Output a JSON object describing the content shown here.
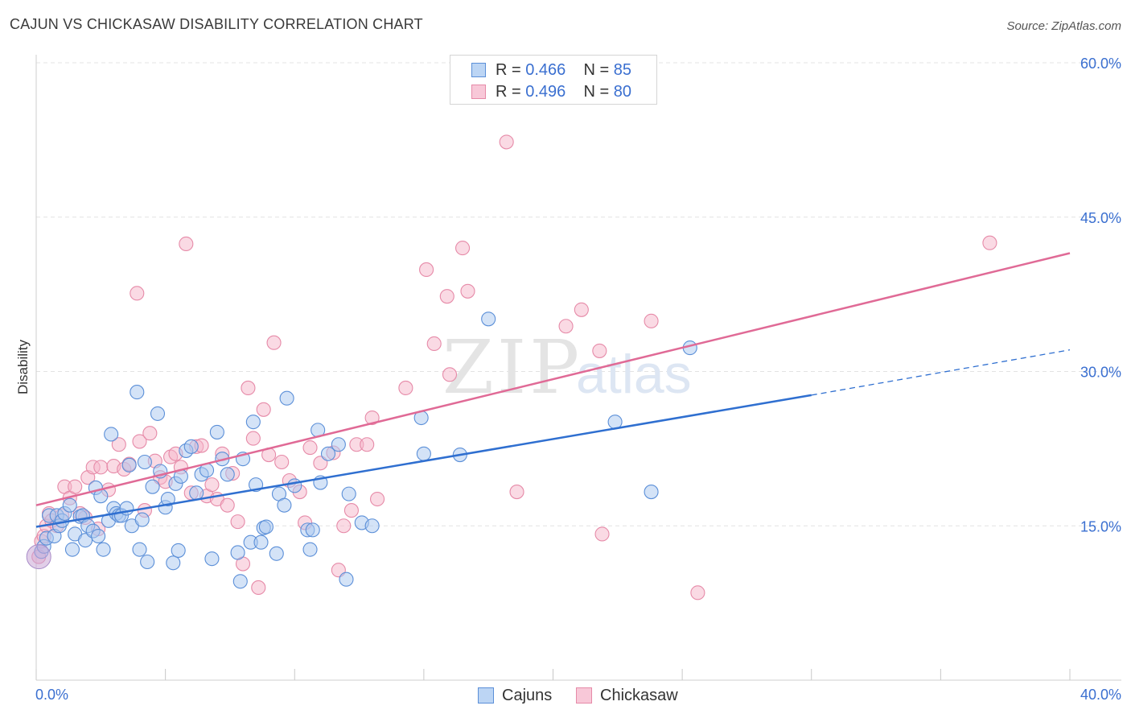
{
  "title": "CAJUN VS CHICKASAW DISABILITY CORRELATION CHART",
  "source": "Source: ZipAtlas.com",
  "watermark": {
    "zip": "ZIP",
    "atlas": "atlas"
  },
  "legend": {
    "rows": [
      {
        "r_label": "R = ",
        "r_value": "0.466",
        "n_label": "N = ",
        "n_value": "85"
      },
      {
        "r_label": "R = ",
        "r_value": "0.496",
        "n_label": "N = ",
        "n_value": "80"
      }
    ]
  },
  "colors": {
    "cajun_fill": "#a9c8f0",
    "cajun_stroke": "#5b8fd8",
    "cajun_line": "#2f6fd0",
    "chick_fill": "#f6b6ca",
    "chick_stroke": "#e68aa8",
    "chick_line": "#e06a96",
    "tick_label": "#3a6fd0"
  },
  "chart_data": {
    "type": "scatter",
    "title": "CAJUN VS CHICKASAW DISABILITY CORRELATION CHART",
    "xlabel": "",
    "ylabel": "Disability",
    "xlim": [
      0,
      40
    ],
    "ylim": [
      0,
      60
    ],
    "x_tick_labels": [
      "0.0%",
      "40.0%"
    ],
    "y_tick_labels": [
      "15.0%",
      "30.0%",
      "45.0%",
      "60.0%"
    ],
    "y_ticks": [
      15,
      30,
      45,
      60
    ],
    "grid": true,
    "legend_position": "top-center",
    "series": [
      {
        "name": "Cajuns",
        "r": 0.466,
        "n": 85,
        "trend": {
          "x0": 0,
          "y0": 14.9,
          "x1": 30,
          "y1": 27.7,
          "dash_to_x": 40,
          "dash_to_y": 32.1
        },
        "points": [
          [
            0.2,
            12.5
          ],
          [
            0.3,
            13.0
          ],
          [
            0.4,
            13.8
          ],
          [
            0.5,
            16.0
          ],
          [
            0.7,
            14.0
          ],
          [
            0.8,
            16.0
          ],
          [
            0.9,
            15.0
          ],
          [
            1.0,
            15.5
          ],
          [
            1.1,
            16.2
          ],
          [
            1.3,
            17.0
          ],
          [
            1.4,
            12.7
          ],
          [
            1.5,
            14.2
          ],
          [
            1.7,
            15.9
          ],
          [
            1.8,
            16.0
          ],
          [
            1.9,
            13.6
          ],
          [
            2.0,
            15.0
          ],
          [
            2.2,
            14.5
          ],
          [
            2.3,
            18.7
          ],
          [
            2.4,
            14.0
          ],
          [
            2.5,
            17.9
          ],
          [
            2.6,
            12.7
          ],
          [
            2.8,
            15.5
          ],
          [
            2.9,
            23.9
          ],
          [
            3.0,
            16.7
          ],
          [
            3.1,
            16.2
          ],
          [
            3.2,
            16.0
          ],
          [
            3.3,
            16.0
          ],
          [
            3.5,
            16.7
          ],
          [
            3.6,
            20.9
          ],
          [
            3.7,
            15.0
          ],
          [
            3.9,
            28.0
          ],
          [
            4.0,
            12.7
          ],
          [
            4.1,
            15.6
          ],
          [
            4.2,
            21.2
          ],
          [
            4.3,
            11.5
          ],
          [
            4.5,
            18.8
          ],
          [
            4.7,
            25.9
          ],
          [
            4.8,
            20.3
          ],
          [
            5.0,
            16.8
          ],
          [
            5.1,
            17.6
          ],
          [
            5.3,
            11.4
          ],
          [
            5.4,
            19.1
          ],
          [
            5.5,
            12.6
          ],
          [
            5.6,
            19.8
          ],
          [
            5.8,
            22.3
          ],
          [
            6.0,
            22.7
          ],
          [
            6.2,
            18.2
          ],
          [
            6.4,
            20.0
          ],
          [
            6.6,
            20.4
          ],
          [
            6.8,
            11.8
          ],
          [
            7.0,
            24.1
          ],
          [
            7.2,
            21.5
          ],
          [
            7.4,
            20.0
          ],
          [
            7.8,
            12.4
          ],
          [
            7.9,
            9.6
          ],
          [
            8.0,
            21.5
          ],
          [
            8.3,
            13.4
          ],
          [
            8.4,
            25.1
          ],
          [
            8.5,
            19.0
          ],
          [
            8.7,
            13.4
          ],
          [
            8.8,
            14.8
          ],
          [
            8.9,
            14.9
          ],
          [
            9.3,
            12.3
          ],
          [
            9.4,
            18.1
          ],
          [
            9.6,
            17.0
          ],
          [
            9.7,
            27.4
          ],
          [
            10.0,
            18.9
          ],
          [
            10.5,
            14.6
          ],
          [
            10.6,
            12.7
          ],
          [
            10.7,
            14.6
          ],
          [
            10.9,
            24.3
          ],
          [
            11.0,
            19.2
          ],
          [
            11.3,
            22.0
          ],
          [
            11.7,
            22.9
          ],
          [
            12.0,
            9.8
          ],
          [
            12.1,
            18.1
          ],
          [
            12.6,
            15.3
          ],
          [
            13.0,
            15.0
          ],
          [
            14.9,
            25.5
          ],
          [
            15.0,
            22.0
          ],
          [
            16.4,
            21.9
          ],
          [
            17.5,
            35.1
          ],
          [
            22.4,
            25.1
          ],
          [
            23.8,
            18.3
          ],
          [
            25.3,
            32.3
          ]
        ]
      },
      {
        "name": "Chickasaw",
        "r": 0.496,
        "n": 80,
        "trend": {
          "x0": 0,
          "y0": 17.0,
          "x1": 40,
          "y1": 41.5
        },
        "points": [
          [
            0.1,
            12.0
          ],
          [
            0.2,
            13.5
          ],
          [
            0.3,
            14.0
          ],
          [
            0.4,
            15.0
          ],
          [
            0.5,
            16.2
          ],
          [
            0.6,
            15.5
          ],
          [
            0.8,
            15.0
          ],
          [
            1.0,
            16.0
          ],
          [
            1.1,
            18.8
          ],
          [
            1.3,
            17.7
          ],
          [
            1.5,
            18.8
          ],
          [
            1.7,
            16.2
          ],
          [
            1.9,
            15.8
          ],
          [
            2.0,
            19.7
          ],
          [
            2.2,
            20.7
          ],
          [
            2.4,
            14.7
          ],
          [
            2.5,
            20.7
          ],
          [
            2.8,
            18.5
          ],
          [
            3.0,
            20.8
          ],
          [
            3.2,
            22.9
          ],
          [
            3.4,
            20.5
          ],
          [
            3.6,
            21.0
          ],
          [
            3.9,
            37.6
          ],
          [
            4.0,
            23.2
          ],
          [
            4.2,
            16.5
          ],
          [
            4.4,
            24.0
          ],
          [
            4.6,
            21.3
          ],
          [
            4.8,
            19.7
          ],
          [
            5.0,
            19.3
          ],
          [
            5.2,
            21.7
          ],
          [
            5.4,
            22.0
          ],
          [
            5.6,
            20.7
          ],
          [
            5.8,
            42.4
          ],
          [
            6.0,
            18.2
          ],
          [
            6.2,
            22.7
          ],
          [
            6.4,
            22.8
          ],
          [
            6.6,
            17.9
          ],
          [
            6.8,
            19.0
          ],
          [
            7.0,
            17.6
          ],
          [
            7.2,
            22.0
          ],
          [
            7.4,
            17.0
          ],
          [
            7.6,
            20.1
          ],
          [
            7.8,
            15.4
          ],
          [
            8.0,
            11.3
          ],
          [
            8.2,
            28.4
          ],
          [
            8.4,
            23.5
          ],
          [
            8.6,
            9.0
          ],
          [
            8.8,
            26.3
          ],
          [
            9.0,
            21.9
          ],
          [
            9.2,
            32.8
          ],
          [
            9.5,
            21.2
          ],
          [
            9.8,
            19.4
          ],
          [
            10.2,
            18.3
          ],
          [
            10.4,
            15.3
          ],
          [
            10.6,
            22.6
          ],
          [
            11.0,
            21.1
          ],
          [
            11.5,
            22.1
          ],
          [
            11.7,
            10.7
          ],
          [
            11.9,
            15.0
          ],
          [
            12.2,
            16.5
          ],
          [
            12.4,
            22.9
          ],
          [
            12.8,
            22.9
          ],
          [
            13.0,
            25.5
          ],
          [
            13.2,
            17.6
          ],
          [
            14.3,
            28.4
          ],
          [
            15.1,
            39.9
          ],
          [
            15.4,
            32.7
          ],
          [
            15.9,
            37.3
          ],
          [
            16.0,
            29.7
          ],
          [
            16.5,
            42.0
          ],
          [
            16.7,
            37.8
          ],
          [
            18.2,
            52.3
          ],
          [
            18.6,
            18.3
          ],
          [
            20.5,
            34.4
          ],
          [
            21.1,
            36.0
          ],
          [
            21.8,
            32.0
          ],
          [
            21.9,
            14.2
          ],
          [
            23.8,
            34.9
          ],
          [
            25.6,
            8.5
          ],
          [
            36.9,
            42.5
          ]
        ]
      }
    ]
  }
}
